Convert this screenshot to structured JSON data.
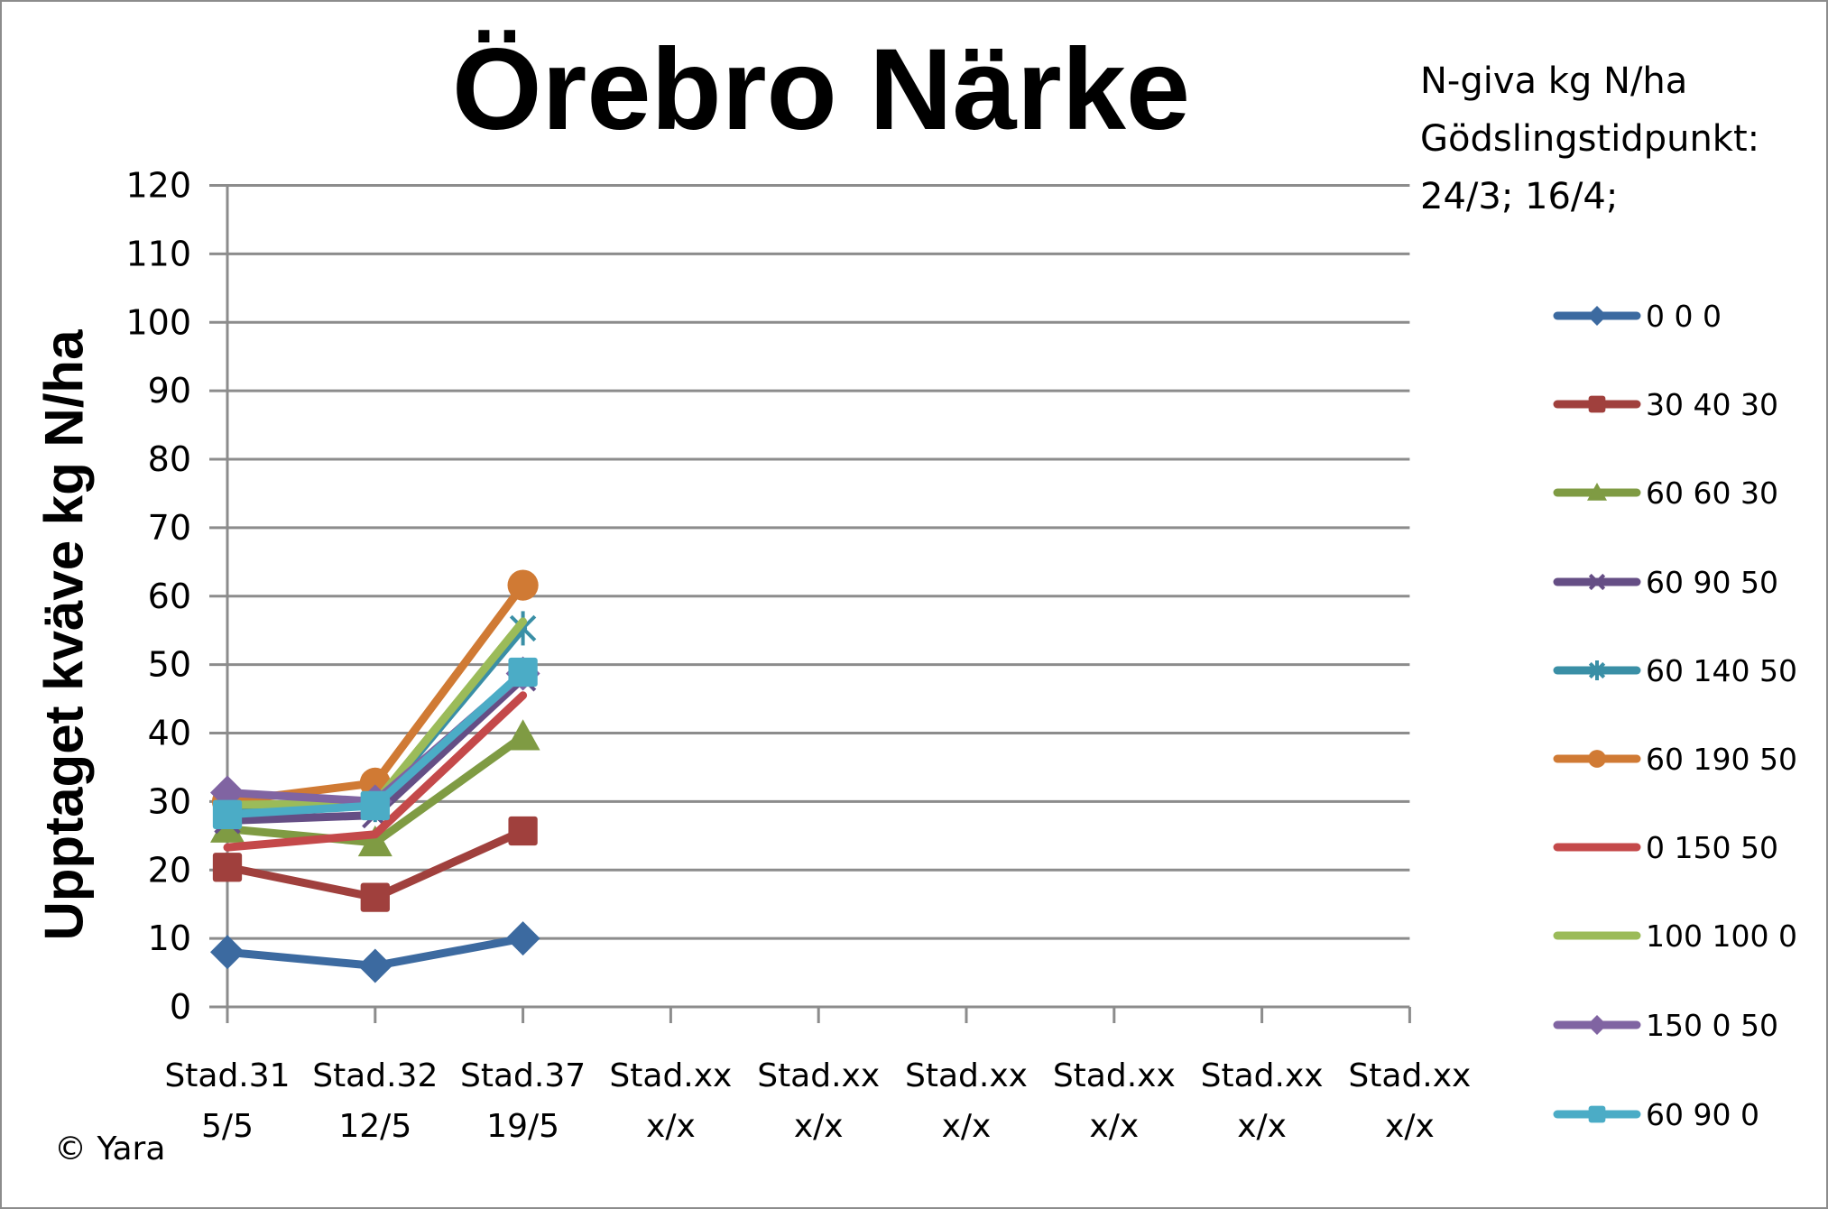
{
  "title": "Örebro Närke",
  "info": {
    "line1": "N-giva kg N/ha",
    "line2": "Gödslingstidpunkt:",
    "line3": "24/3; 16/4;"
  },
  "copyright": "© Yara",
  "chart_data": {
    "type": "line",
    "title": "Örebro Närke",
    "xlabel": "",
    "ylabel": "Upptaget kväve kg N/ha",
    "ylim": [
      0,
      120
    ],
    "yticks": [
      0,
      10,
      20,
      30,
      40,
      50,
      60,
      70,
      80,
      90,
      100,
      110,
      120
    ],
    "grid": true,
    "legend_position": "right",
    "legend_title": "N-giva kg N/ha; Gödslingstidpunkt: 24/3; 16/4;",
    "categories": [
      {
        "line1": "Stad.31",
        "line2": "5/5"
      },
      {
        "line1": "Stad.32",
        "line2": "12/5"
      },
      {
        "line1": "Stad.37",
        "line2": "19/5"
      },
      {
        "line1": "Stad.xx",
        "line2": "x/x"
      },
      {
        "line1": "Stad.xx",
        "line2": "x/x"
      },
      {
        "line1": "Stad.xx",
        "line2": "x/x"
      },
      {
        "line1": "Stad.xx",
        "line2": "x/x"
      },
      {
        "line1": "Stad.xx",
        "line2": "x/x"
      },
      {
        "line1": "Stad.xx",
        "line2": "x/x"
      }
    ],
    "series": [
      {
        "name": "0 0 0",
        "color": "#3c6aa0",
        "marker": "diamond",
        "values": [
          8.0,
          6.0,
          10.0
        ]
      },
      {
        "name": "30 40 30",
        "color": "#a0403d",
        "marker": "square",
        "values": [
          20.4,
          16.0,
          25.7
        ]
      },
      {
        "name": "60 60 30",
        "color": "#7f9b43",
        "marker": "triangle",
        "values": [
          26.0,
          24.0,
          39.5
        ]
      },
      {
        "name": "60 90 50",
        "color": "#654e85",
        "marker": "x",
        "values": [
          27.2,
          28.0,
          48.0
        ]
      },
      {
        "name": "60 140 50",
        "color": "#3a8fa6",
        "marker": "star",
        "values": [
          29.0,
          29.5,
          55.3
        ]
      },
      {
        "name": "60 190 50",
        "color": "#d07a34",
        "marker": "circle",
        "values": [
          30.0,
          32.7,
          61.6
        ]
      },
      {
        "name": "0 150 50",
        "color": "#c4494a",
        "marker": "none",
        "values": [
          23.3,
          25.2,
          45.5
        ]
      },
      {
        "name": "100 100 0",
        "color": "#9bbb59",
        "marker": "none",
        "values": [
          29.5,
          29.8,
          56.3
        ]
      },
      {
        "name": "150 0 50",
        "color": "#8064a2",
        "marker": "diamond",
        "values": [
          31.3,
          30.0,
          48.7
        ]
      },
      {
        "name": "60 90 0",
        "color": "#4bacc6",
        "marker": "square",
        "values": [
          28.1,
          29.4,
          48.9
        ]
      }
    ]
  }
}
